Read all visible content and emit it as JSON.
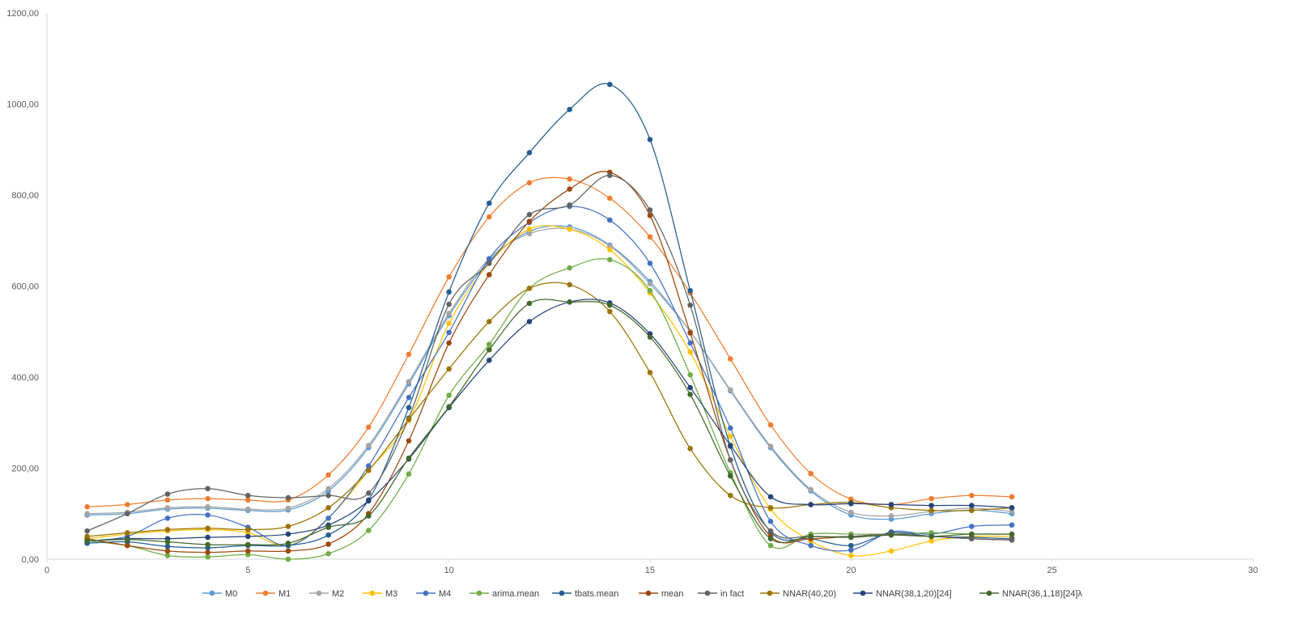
{
  "chart_data": {
    "type": "line",
    "smooth": true,
    "title": "",
    "xlabel": "",
    "ylabel": "",
    "xlim": [
      0,
      30
    ],
    "ylim": [
      0,
      1200
    ],
    "x_ticks": [
      0,
      5,
      10,
      15,
      20,
      25,
      30
    ],
    "x_tick_labels": [
      "0",
      "5",
      "10",
      "15",
      "20",
      "25",
      "30"
    ],
    "y_ticks": [
      0,
      200,
      400,
      600,
      800,
      1000,
      1200
    ],
    "y_tick_labels": [
      "0,00",
      "200,00",
      "400,00",
      "600,00",
      "800,00",
      "1000,00",
      "1200,00"
    ],
    "grid": false,
    "legend_position": "bottom",
    "x": [
      1,
      2,
      3,
      4,
      5,
      6,
      7,
      8,
      9,
      10,
      11,
      12,
      13,
      14,
      15,
      16,
      17,
      18,
      19,
      20,
      21,
      22,
      23,
      24
    ],
    "series": [
      {
        "name": "M0",
        "color": "#5B9BD5",
        "values": [
          97,
          100,
          110,
          112,
          107,
          108,
          150,
          245,
          385,
          535,
          655,
          720,
          730,
          690,
          610,
          500,
          370,
          245,
          150,
          97,
          88,
          100,
          108,
          100
        ]
      },
      {
        "name": "M1",
        "color": "#ED7D31",
        "values": [
          115,
          120,
          130,
          133,
          130,
          130,
          185,
          290,
          450,
          620,
          752,
          827,
          835,
          793,
          708,
          585,
          440,
          295,
          188,
          132,
          120,
          133,
          140,
          137
        ]
      },
      {
        "name": "M2",
        "color": "#A5A5A5",
        "values": [
          100,
          103,
          113,
          115,
          110,
          112,
          155,
          250,
          390,
          540,
          660,
          715,
          725,
          688,
          605,
          500,
          372,
          248,
          153,
          103,
          95,
          105,
          112,
          105
        ]
      },
      {
        "name": "M3",
        "color": "#FFC000",
        "values": [
          45,
          55,
          62,
          65,
          58,
          30,
          90,
          195,
          305,
          518,
          650,
          725,
          725,
          680,
          585,
          455,
          270,
          110,
          40,
          8,
          18,
          40,
          50,
          50
        ]
      },
      {
        "name": "M4",
        "color": "#4472C4",
        "values": [
          40,
          50,
          90,
          97,
          70,
          30,
          90,
          205,
          355,
          498,
          660,
          740,
          775,
          745,
          650,
          475,
          288,
          83,
          30,
          20,
          60,
          55,
          72,
          75
        ]
      },
      {
        "name": "arima.mean",
        "color": "#70AD47",
        "values": [
          40,
          30,
          8,
          5,
          10,
          0,
          12,
          63,
          187,
          360,
          472,
          595,
          640,
          658,
          590,
          405,
          190,
          30,
          55,
          55,
          55,
          58,
          55,
          55
        ]
      },
      {
        "name": "tbats.mean",
        "color": "#255E91",
        "values": [
          35,
          38,
          28,
          25,
          30,
          30,
          53,
          130,
          333,
          587,
          782,
          893,
          988,
          1043,
          922,
          590,
          248,
          60,
          45,
          30,
          58,
          50,
          48,
          45
        ]
      },
      {
        "name": "mean",
        "color": "#9E480E",
        "values": [
          45,
          30,
          18,
          15,
          18,
          18,
          33,
          100,
          260,
          475,
          625,
          742,
          813,
          850,
          755,
          497,
          218,
          50,
          45,
          50,
          55,
          50,
          45,
          42
        ]
      },
      {
        "name": "in fact",
        "color": "#636363",
        "values": [
          62,
          100,
          143,
          155,
          140,
          135,
          140,
          145,
          310,
          560,
          650,
          757,
          778,
          843,
          767,
          558,
          218,
          62,
          50,
          50,
          55,
          50,
          45,
          42
        ]
      },
      {
        "name": "NNAR(40,20)",
        "color": "#997300",
        "values": [
          50,
          58,
          65,
          68,
          65,
          72,
          113,
          195,
          307,
          418,
          522,
          595,
          603,
          544,
          410,
          243,
          140,
          113,
          120,
          125,
          113,
          107,
          107,
          113
        ]
      },
      {
        "name": "NNAR(38,1,20)[24]",
        "color": "#264478",
        "values": [
          40,
          45,
          45,
          48,
          50,
          55,
          75,
          128,
          220,
          333,
          437,
          522,
          565,
          563,
          495,
          377,
          250,
          137,
          120,
          122,
          120,
          118,
          118,
          113
        ]
      },
      {
        "name": "NNAR(36,1,18)[24]λ",
        "color": "#43682B",
        "values": [
          40,
          43,
          38,
          32,
          32,
          35,
          70,
          95,
          222,
          335,
          460,
          562,
          565,
          558,
          488,
          362,
          183,
          45,
          50,
          48,
          53,
          50,
          55,
          55
        ]
      }
    ]
  }
}
